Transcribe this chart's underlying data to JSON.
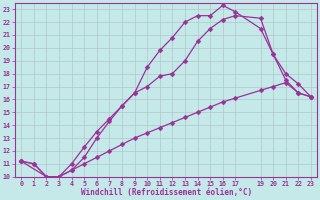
{
  "xlabel": "Windchill (Refroidissement éolien,°C)",
  "background_color": "#c5e8e8",
  "grid_color": "#b0c8c8",
  "line_color": "#993399",
  "spine_color": "#993399",
  "xlim": [
    -0.5,
    23.5
  ],
  "ylim": [
    10,
    23.5
  ],
  "xticks": [
    0,
    1,
    2,
    3,
    4,
    5,
    6,
    7,
    8,
    9,
    10,
    11,
    12,
    13,
    14,
    15,
    16,
    17,
    19,
    20,
    21,
    22,
    23
  ],
  "yticks": [
    10,
    11,
    12,
    13,
    14,
    15,
    16,
    17,
    18,
    19,
    20,
    21,
    22,
    23
  ],
  "line1": {
    "x": [
      0,
      1,
      2,
      3,
      4,
      5,
      6,
      7,
      8,
      9,
      10,
      11,
      12,
      13,
      14,
      15,
      16,
      17,
      19,
      20,
      21,
      22,
      23
    ],
    "y": [
      11.2,
      11.0,
      10.0,
      10.0,
      10.5,
      11.0,
      11.5,
      12.0,
      12.5,
      13.0,
      13.4,
      13.8,
      14.2,
      14.6,
      15.0,
      15.4,
      15.8,
      16.1,
      16.7,
      17.0,
      17.3,
      16.5,
      16.2
    ]
  },
  "line2": {
    "x": [
      0,
      1,
      2,
      3,
      4,
      5,
      6,
      7,
      8,
      9,
      10,
      11,
      12,
      13,
      14,
      15,
      16,
      17,
      19,
      20,
      21,
      22,
      23
    ],
    "y": [
      11.2,
      11.0,
      10.0,
      10.0,
      11.0,
      12.3,
      13.5,
      14.5,
      15.5,
      16.5,
      17.0,
      17.8,
      18.0,
      19.0,
      20.5,
      21.5,
      22.2,
      22.5,
      22.3,
      19.5,
      17.5,
      16.5,
      16.2
    ]
  },
  "line3": {
    "x": [
      0,
      2,
      3,
      4,
      5,
      6,
      7,
      8,
      9,
      10,
      11,
      12,
      13,
      14,
      15,
      16,
      17,
      19,
      20,
      21,
      22,
      23
    ],
    "y": [
      11.2,
      10.0,
      10.0,
      10.5,
      11.5,
      13.0,
      14.3,
      15.5,
      16.5,
      18.5,
      19.8,
      20.8,
      22.0,
      22.5,
      22.5,
      23.3,
      22.8,
      21.5,
      19.5,
      18.0,
      17.2,
      16.2
    ]
  },
  "marker_size": 2.5,
  "line_width": 0.9,
  "xlabel_fontsize": 5.5,
  "tick_fontsize": 4.8
}
